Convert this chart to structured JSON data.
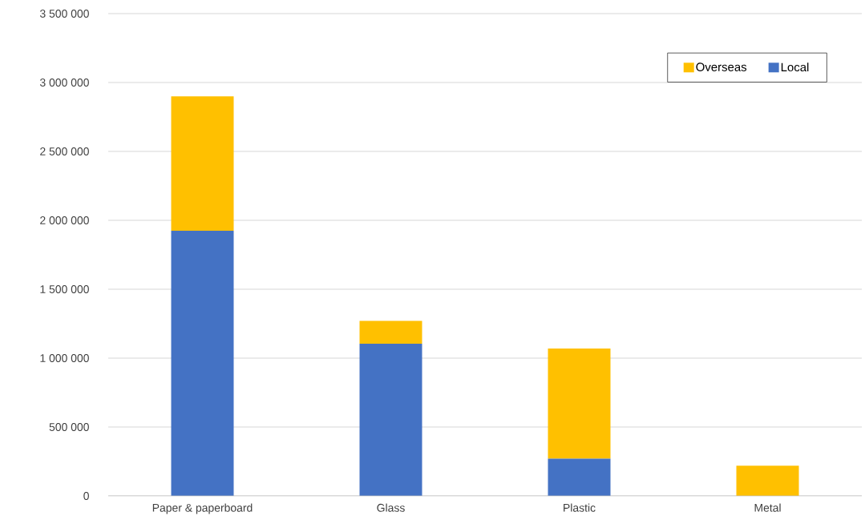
{
  "chart_data": {
    "type": "bar",
    "stacked": true,
    "categories": [
      "Paper & paperboard",
      "Glass",
      "Plastic",
      "Metal"
    ],
    "series": [
      {
        "name": "Local",
        "color": "#4472c4",
        "values": [
          1925000,
          1105000,
          270000,
          0
        ]
      },
      {
        "name": "Overseas",
        "color": "#ffc000",
        "values": [
          975000,
          165000,
          800000,
          220000
        ]
      }
    ],
    "ylim": [
      0,
      3500000
    ],
    "yticks": [
      0,
      {
        "value": 500000,
        "label": "500 000"
      },
      {
        "value": 1000000,
        "label": "1 000 000"
      },
      {
        "value": 1500000,
        "label": "1 500 000"
      },
      {
        "value": 2000000,
        "label": "2 000 000"
      },
      {
        "value": 2500000,
        "label": "2 500 000"
      },
      {
        "value": 3000000,
        "label": "3 000 000"
      },
      {
        "value": 3500000,
        "label": "3 500 000"
      }
    ],
    "grid": "y",
    "legend": "top right"
  }
}
